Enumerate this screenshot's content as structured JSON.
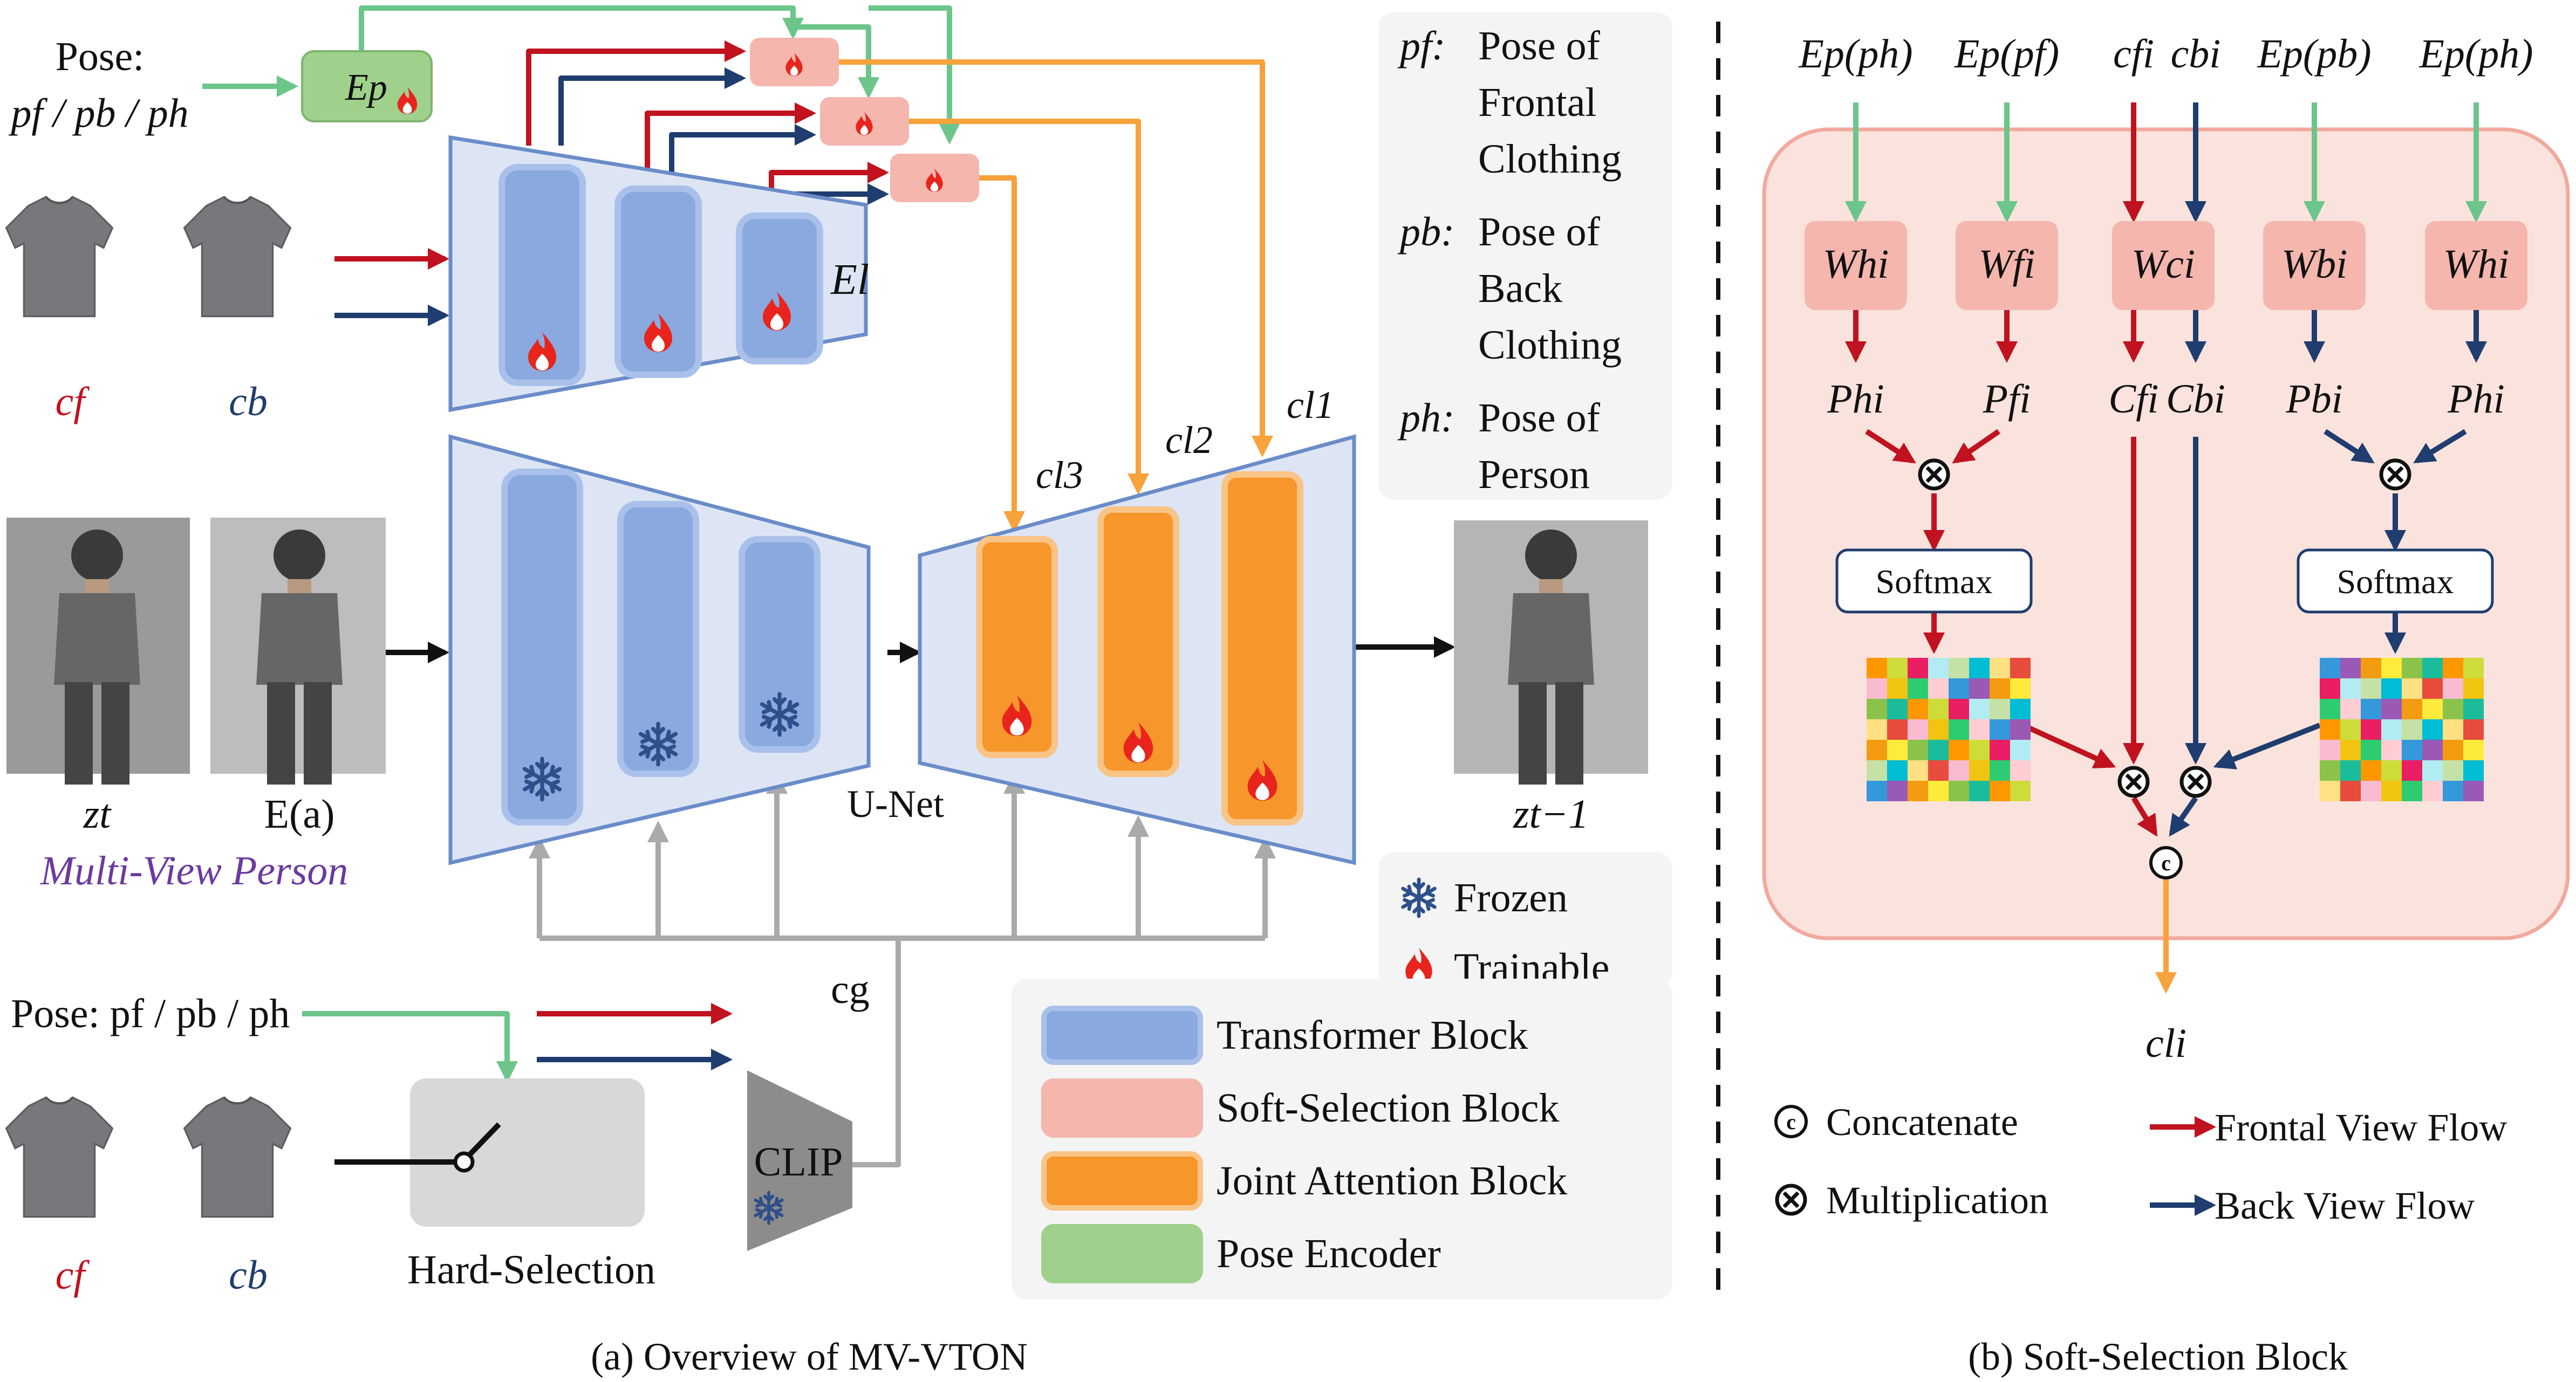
{
  "colors": {
    "frontal_flow": "#c0121f",
    "back_flow": "#1f3d6e",
    "pose_flow": "#6cc58a",
    "joint_flow": "#f7a23b",
    "cond_flow": "#aaaaaa",
    "transformer_block": "#8aa9df",
    "soft_selection_block": "#f4b6ad",
    "joint_attention_block": "#f7962b",
    "pose_encoder": "#9fd18c",
    "encoder_bg": "#dde5f5",
    "soft_panel_bg": "#fbe3dd",
    "clip_fill": "#8c8c8c"
  },
  "icons": {
    "trainable": "flame-icon",
    "frozen": "snowflake-icon",
    "multiply": "circled-times-icon",
    "concat": "circled-c-icon",
    "switch": "switch-icon"
  },
  "panel_a": {
    "caption": "(a) Overview of MV-VTON",
    "pose_top_label": "Pose:",
    "pose_top_vars": "pf / pb / ph",
    "pose_encoder_label": "Ep",
    "garment_encoder_label": "El",
    "c_front": "cf",
    "c_back": "cb",
    "z_t": "zt",
    "e_a": "E(a)",
    "multi_view_person": "Multi-View Person",
    "unet_label": "U-Net",
    "z_t_minus_1": "zt−1",
    "c_l1": "cl1",
    "c_l2": "cl2",
    "c_l3": "cl3",
    "c_g": "cg",
    "pose_bottom_label": "Pose: pf / pb / ph",
    "hard_selection": "Hard-Selection",
    "clip": "CLIP",
    "pose_defs": [
      {
        "symbol": "pf:",
        "lines": [
          "Pose of",
          "Frontal",
          "Clothing"
        ]
      },
      {
        "symbol": "pb:",
        "lines": [
          "Pose of",
          "Back",
          "Clothing"
        ]
      },
      {
        "symbol": "ph:",
        "lines": [
          "Pose of",
          "Person"
        ]
      }
    ],
    "legend_status": [
      {
        "icon": "snowflake-icon",
        "label": "Frozen"
      },
      {
        "icon": "flame-icon",
        "label": "Trainable"
      }
    ],
    "legend_blocks": [
      {
        "key": "transformer_block",
        "label": "Transformer Block"
      },
      {
        "key": "soft_selection_block",
        "label": "Soft-Selection Block"
      },
      {
        "key": "joint_attention_block",
        "label": "Joint Attention Block"
      },
      {
        "key": "pose_encoder",
        "label": "Pose Encoder"
      }
    ]
  },
  "panel_b": {
    "caption": "(b) Soft-Selection Block",
    "inputs": [
      "Ep(ph)",
      "Ep(pf)",
      "cfi",
      "cbi",
      "Ep(pb)",
      "Ep(ph)"
    ],
    "weights": [
      "Whi",
      "Wfi",
      "Wci",
      "Wbi",
      "Whi"
    ],
    "projections": [
      "Phi",
      "Pfi",
      "Cfi",
      "Cbi",
      "Pbi",
      "Phi"
    ],
    "softmax": "Softmax",
    "output": "cli",
    "legend": {
      "concatenate": "Concatenate",
      "multiplication": "Multiplication",
      "frontal_view_flow": "Frontal View Flow",
      "back_view_flow": "Back View Flow"
    }
  }
}
